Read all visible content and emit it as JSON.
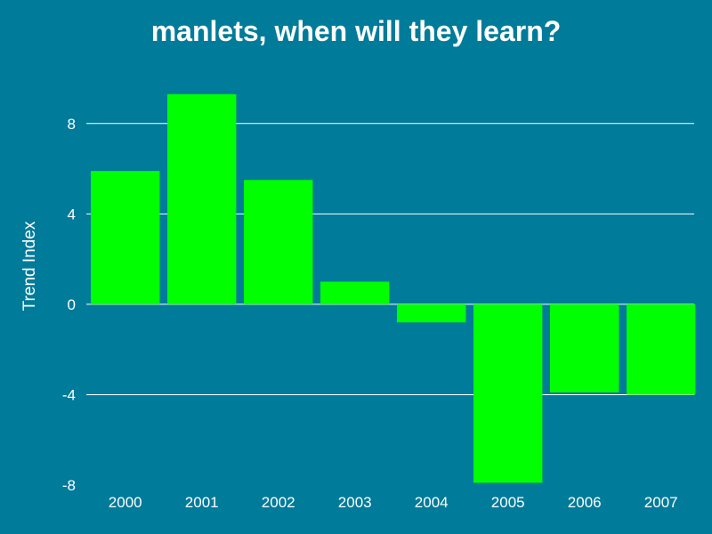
{
  "colors": {
    "background": "#007b9a",
    "bar": "#00ff00",
    "text": "#ffffff",
    "grid": "#ffffff"
  },
  "chart_data": {
    "type": "bar",
    "title": "manlets, when will they learn?",
    "xlabel": "",
    "ylabel": "Trend Index",
    "categories": [
      "2000",
      "2001",
      "2002",
      "2003",
      "2004",
      "2005",
      "2006",
      "2007"
    ],
    "values": [
      5.9,
      9.3,
      5.5,
      1.0,
      -0.8,
      -7.9,
      -3.9,
      -4.0
    ],
    "ylim": [
      -8,
      10
    ],
    "yticks": [
      -8,
      -4,
      0,
      4,
      8
    ],
    "grid": true,
    "legend": "none"
  }
}
